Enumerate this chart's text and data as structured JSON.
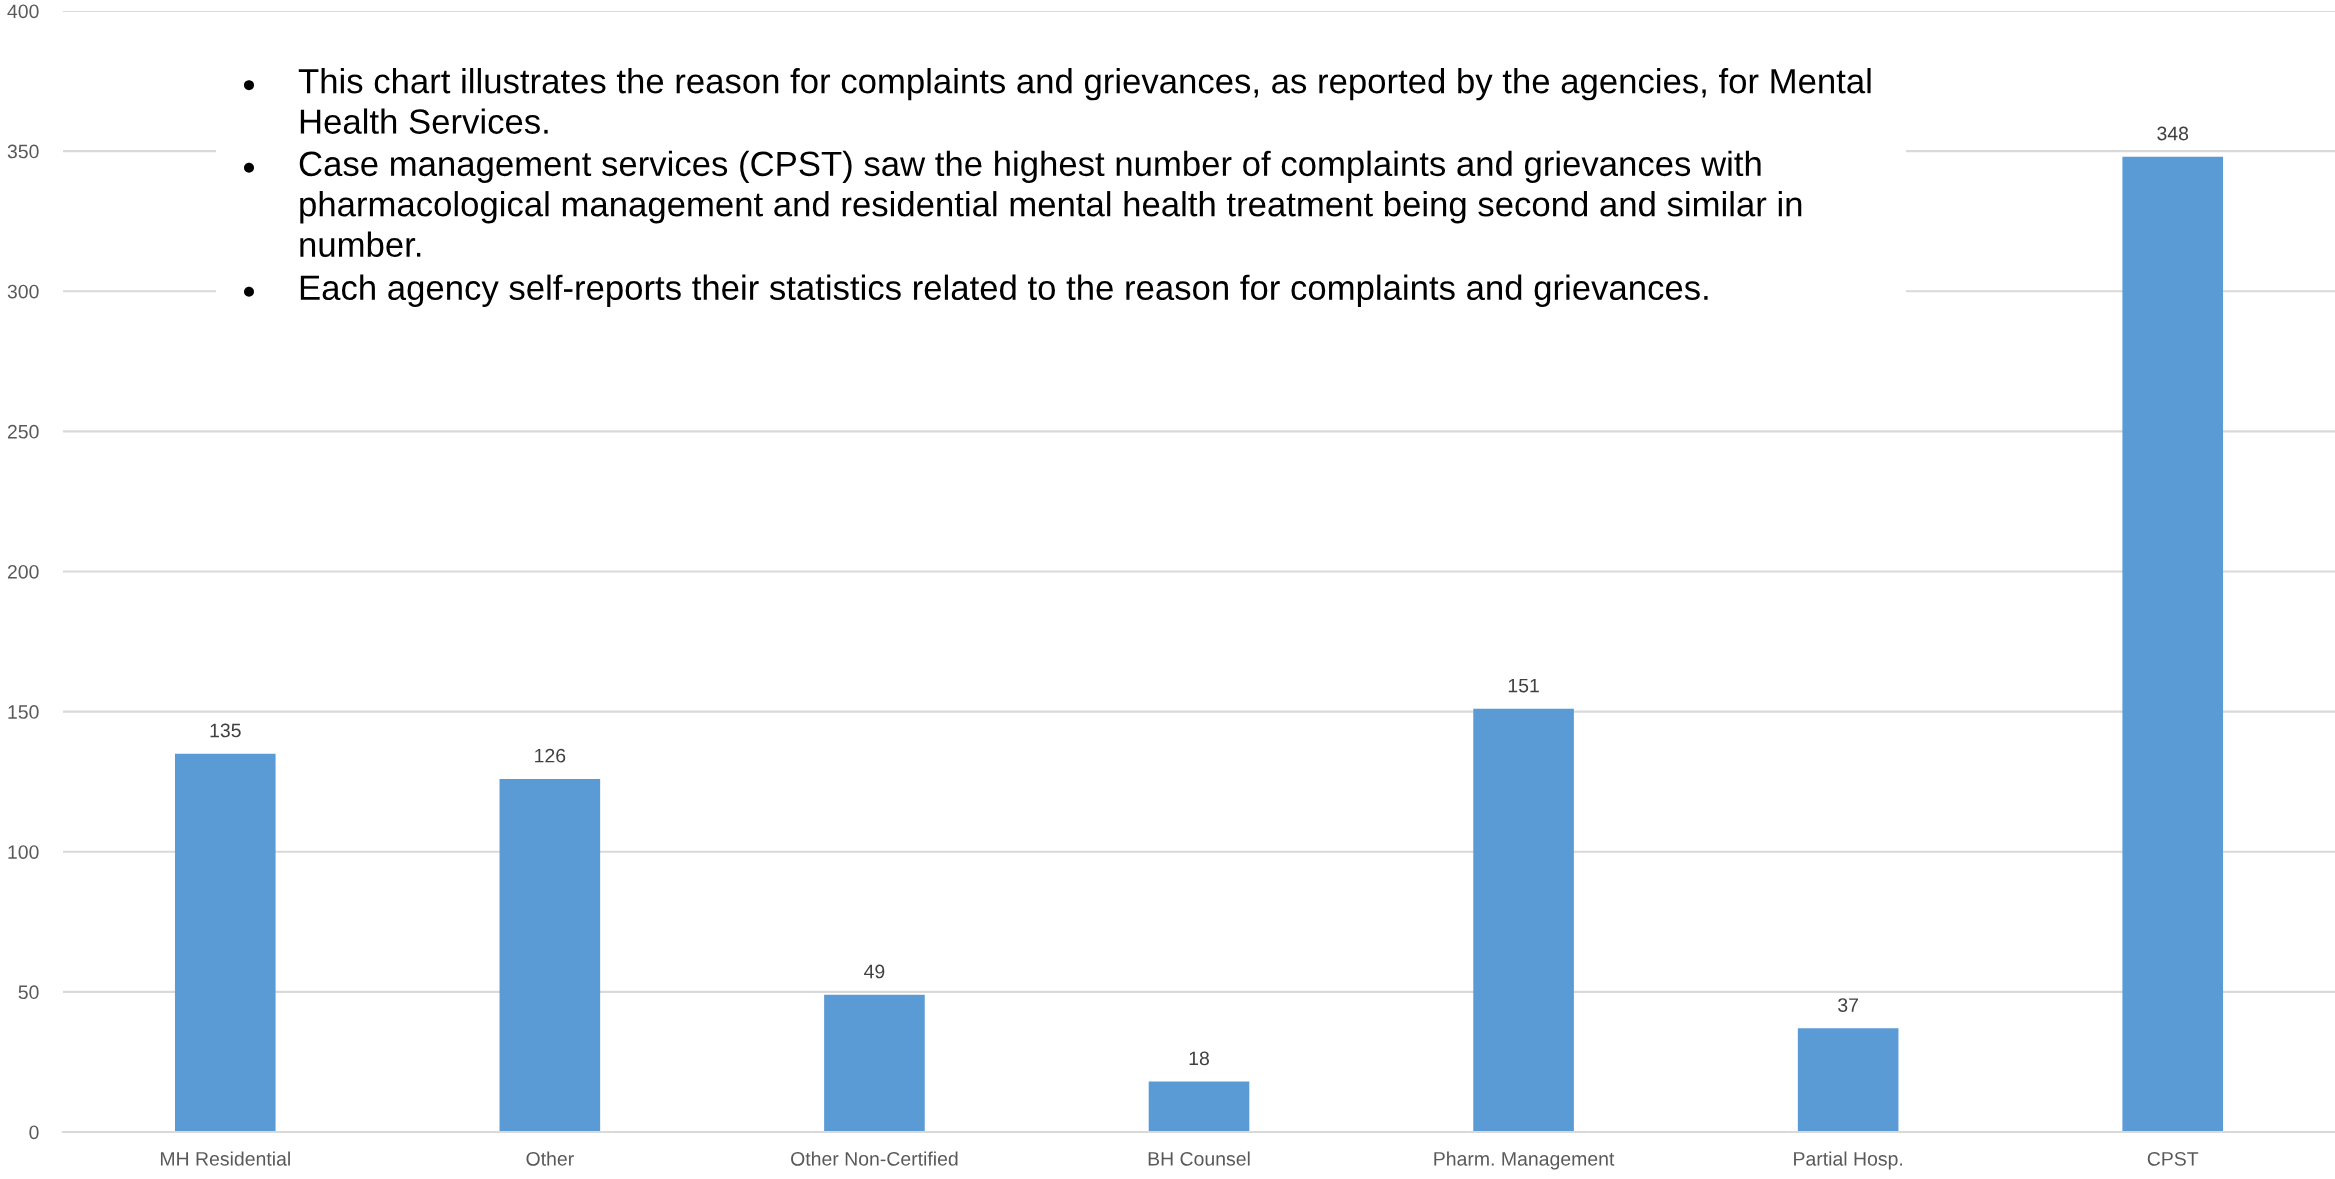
{
  "chart_data": {
    "type": "bar",
    "categories": [
      "MH Residential",
      "Other",
      "Other Non-Certified",
      "BH Counsel",
      "Pharm. Management",
      "Partial Hosp.",
      "CPST"
    ],
    "values": [
      135,
      126,
      49,
      18,
      151,
      37,
      348
    ],
    "color": "#5b9bd5",
    "ylim": [
      0,
      400
    ],
    "yticks": [
      0,
      50,
      100,
      150,
      200,
      250,
      300,
      350,
      400
    ],
    "grid": "y",
    "data_labels": true,
    "annotations": [
      "This chart illustrates the reason for complaints and grievances, as reported by the agencies, for Mental Health Services.",
      "Case management services (CPST) saw the highest number of complaints and grievances with pharmacological management and residential mental health treatment being second and similar in number.",
      "Each agency self-reports their statistics related to the reason for complaints and grievances."
    ]
  }
}
